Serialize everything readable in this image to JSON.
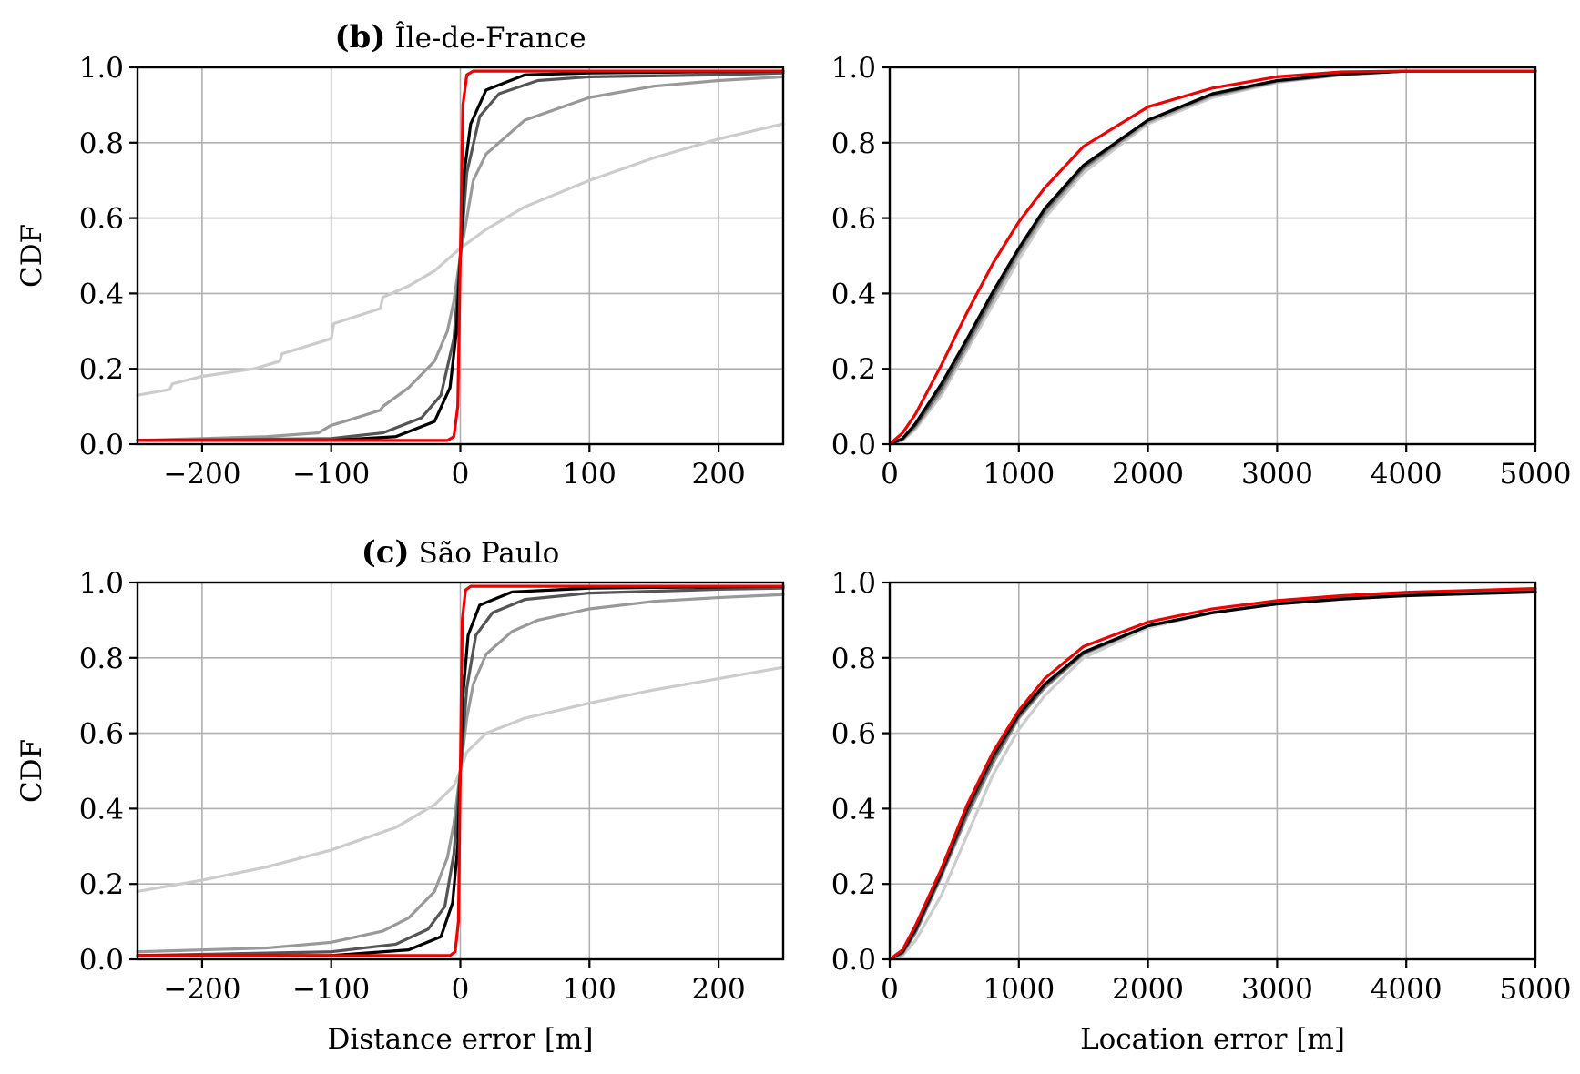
{
  "chart_data": [
    {
      "id": "b-distance",
      "type": "line",
      "panel_tag": "(b)",
      "panel_name": "Île-de-France",
      "xlabel": "",
      "ylabel": "CDF",
      "xlim": [
        -250,
        250
      ],
      "ylim": [
        0,
        1
      ],
      "xticks": [
        -200,
        -100,
        0,
        100,
        200
      ],
      "xtick_labels": [
        "−200",
        "−100",
        "0",
        "100",
        "200"
      ],
      "yticks": [
        0,
        0.2,
        0.4,
        0.6,
        0.8,
        1.0
      ],
      "ytick_labels": [
        "0.0",
        "0.2",
        "0.4",
        "0.6",
        "0.8",
        "1.0"
      ],
      "grid": true,
      "series": [
        {
          "color": "#cccccc",
          "x": [
            -250,
            -225,
            -223,
            -200,
            -160,
            -140,
            -138,
            -100,
            -98,
            -62,
            -60,
            -40,
            -20,
            0,
            20,
            50,
            100,
            150,
            200,
            250
          ],
          "y": [
            0.13,
            0.145,
            0.16,
            0.18,
            0.2,
            0.22,
            0.24,
            0.28,
            0.32,
            0.36,
            0.39,
            0.42,
            0.46,
            0.52,
            0.57,
            0.63,
            0.7,
            0.76,
            0.81,
            0.85
          ]
        },
        {
          "color": "#999999",
          "x": [
            -250,
            -200,
            -150,
            -110,
            -100,
            -90,
            -62,
            -60,
            -40,
            -20,
            -10,
            -5,
            0,
            5,
            10,
            20,
            50,
            100,
            150,
            200,
            250
          ],
          "y": [
            0.01,
            0.015,
            0.02,
            0.03,
            0.05,
            0.06,
            0.09,
            0.1,
            0.15,
            0.22,
            0.3,
            0.38,
            0.5,
            0.6,
            0.7,
            0.77,
            0.86,
            0.92,
            0.95,
            0.965,
            0.975
          ]
        },
        {
          "color": "#555555",
          "x": [
            -250,
            -100,
            -60,
            -30,
            -15,
            -5,
            0,
            5,
            15,
            30,
            60,
            100,
            200,
            250
          ],
          "y": [
            0.01,
            0.015,
            0.03,
            0.07,
            0.13,
            0.28,
            0.5,
            0.72,
            0.87,
            0.93,
            0.965,
            0.975,
            0.98,
            0.985
          ]
        },
        {
          "color": "#000000",
          "x": [
            -250,
            -100,
            -50,
            -20,
            -8,
            -3,
            0,
            3,
            8,
            20,
            50,
            100,
            250
          ],
          "y": [
            0.01,
            0.01,
            0.02,
            0.06,
            0.15,
            0.3,
            0.5,
            0.72,
            0.85,
            0.94,
            0.98,
            0.985,
            0.99
          ]
        },
        {
          "color": "#ee0000",
          "x": [
            -250,
            -10,
            -5,
            -2,
            0,
            2,
            5,
            10,
            250
          ],
          "y": [
            0.01,
            0.01,
            0.02,
            0.1,
            0.5,
            0.9,
            0.98,
            0.99,
            0.99
          ]
        }
      ]
    },
    {
      "id": "b-location",
      "type": "line",
      "panel_tag": "",
      "panel_name": "",
      "xlabel": "",
      "ylabel": "",
      "xlim": [
        0,
        5000
      ],
      "ylim": [
        0,
        1
      ],
      "xticks": [
        0,
        1000,
        2000,
        3000,
        4000,
        5000
      ],
      "xtick_labels": [
        "0",
        "1000",
        "2000",
        "3000",
        "4000",
        "5000"
      ],
      "yticks": [
        0,
        0.2,
        0.4,
        0.6,
        0.8,
        1.0
      ],
      "ytick_labels": [
        "0.0",
        "0.2",
        "0.4",
        "0.6",
        "0.8",
        "1.0"
      ],
      "grid": true,
      "series": [
        {
          "color": "#cccccc",
          "x": [
            0,
            100,
            200,
            400,
            600,
            800,
            1000,
            1200,
            1500,
            2000,
            2500,
            3000,
            3500,
            4000,
            4500,
            5000
          ],
          "y": [
            0,
            0.01,
            0.04,
            0.13,
            0.25,
            0.37,
            0.49,
            0.6,
            0.72,
            0.85,
            0.92,
            0.96,
            0.98,
            0.99,
            0.99,
            0.99
          ]
        },
        {
          "color": "#999999",
          "x": [
            0,
            100,
            200,
            400,
            600,
            800,
            1000,
            1200,
            1500,
            2000,
            2500,
            3000,
            3500,
            4000,
            4500,
            5000
          ],
          "y": [
            0,
            0.012,
            0.045,
            0.14,
            0.26,
            0.385,
            0.505,
            0.61,
            0.73,
            0.855,
            0.925,
            0.962,
            0.98,
            0.99,
            0.99,
            0.99
          ]
        },
        {
          "color": "#555555",
          "x": [
            0,
            100,
            200,
            400,
            600,
            800,
            1000,
            1200,
            1500,
            2000,
            2500,
            3000,
            3500,
            4000,
            4500,
            5000
          ],
          "y": [
            0,
            0.014,
            0.05,
            0.15,
            0.27,
            0.395,
            0.515,
            0.62,
            0.735,
            0.86,
            0.928,
            0.964,
            0.981,
            0.99,
            0.99,
            0.99
          ]
        },
        {
          "color": "#000000",
          "x": [
            0,
            100,
            200,
            400,
            600,
            800,
            1000,
            1200,
            1500,
            2000,
            2500,
            3000,
            3500,
            4000,
            4500,
            5000
          ],
          "y": [
            0,
            0.015,
            0.055,
            0.16,
            0.28,
            0.405,
            0.52,
            0.625,
            0.74,
            0.86,
            0.93,
            0.965,
            0.982,
            0.99,
            0.99,
            0.99
          ]
        },
        {
          "color": "#ee0000",
          "x": [
            0,
            100,
            200,
            400,
            600,
            800,
            1000,
            1200,
            1500,
            2000,
            2500,
            3000,
            3500,
            4000,
            4500,
            5000
          ],
          "y": [
            0,
            0.03,
            0.08,
            0.21,
            0.35,
            0.48,
            0.59,
            0.68,
            0.79,
            0.895,
            0.945,
            0.975,
            0.988,
            0.99,
            0.99,
            0.99
          ]
        }
      ]
    },
    {
      "id": "c-distance",
      "type": "line",
      "panel_tag": "(c)",
      "panel_name": "São Paulo",
      "xlabel": "Distance error [m]",
      "ylabel": "CDF",
      "xlim": [
        -250,
        250
      ],
      "ylim": [
        0,
        1
      ],
      "xticks": [
        -200,
        -100,
        0,
        100,
        200
      ],
      "xtick_labels": [
        "−200",
        "−100",
        "0",
        "100",
        "200"
      ],
      "yticks": [
        0,
        0.2,
        0.4,
        0.6,
        0.8,
        1.0
      ],
      "ytick_labels": [
        "0.0",
        "0.2",
        "0.4",
        "0.6",
        "0.8",
        "1.0"
      ],
      "grid": true,
      "series": [
        {
          "color": "#cccccc",
          "x": [
            -250,
            -200,
            -150,
            -100,
            -50,
            -20,
            -5,
            0,
            5,
            20,
            50,
            100,
            150,
            200,
            250
          ],
          "y": [
            0.18,
            0.21,
            0.245,
            0.29,
            0.35,
            0.41,
            0.46,
            0.5,
            0.55,
            0.6,
            0.64,
            0.68,
            0.715,
            0.745,
            0.775
          ]
        },
        {
          "color": "#999999",
          "x": [
            -250,
            -150,
            -100,
            -60,
            -40,
            -20,
            -10,
            -5,
            0,
            5,
            10,
            20,
            40,
            60,
            100,
            150,
            200,
            250
          ],
          "y": [
            0.02,
            0.03,
            0.045,
            0.075,
            0.11,
            0.18,
            0.27,
            0.36,
            0.5,
            0.64,
            0.73,
            0.81,
            0.87,
            0.9,
            0.93,
            0.95,
            0.96,
            0.968
          ]
        },
        {
          "color": "#555555",
          "x": [
            -250,
            -100,
            -50,
            -25,
            -12,
            -5,
            0,
            5,
            12,
            25,
            50,
            100,
            200,
            250
          ],
          "y": [
            0.01,
            0.02,
            0.04,
            0.08,
            0.14,
            0.28,
            0.5,
            0.72,
            0.86,
            0.92,
            0.955,
            0.972,
            0.982,
            0.985
          ]
        },
        {
          "color": "#000000",
          "x": [
            -250,
            -100,
            -40,
            -15,
            -6,
            -2,
            0,
            2,
            6,
            15,
            40,
            100,
            250
          ],
          "y": [
            0.01,
            0.01,
            0.025,
            0.06,
            0.15,
            0.3,
            0.5,
            0.7,
            0.86,
            0.94,
            0.975,
            0.985,
            0.99
          ]
        },
        {
          "color": "#ee0000",
          "x": [
            -250,
            -8,
            -4,
            -1.5,
            0,
            1.5,
            4,
            8,
            250
          ],
          "y": [
            0.01,
            0.01,
            0.02,
            0.1,
            0.5,
            0.9,
            0.98,
            0.99,
            0.99
          ]
        }
      ]
    },
    {
      "id": "c-location",
      "type": "line",
      "panel_tag": "",
      "panel_name": "",
      "xlabel": "Location error [m]",
      "ylabel": "",
      "xlim": [
        0,
        5000
      ],
      "ylim": [
        0,
        1
      ],
      "xticks": [
        0,
        1000,
        2000,
        3000,
        4000,
        5000
      ],
      "xtick_labels": [
        "0",
        "1000",
        "2000",
        "3000",
        "4000",
        "5000"
      ],
      "yticks": [
        0,
        0.2,
        0.4,
        0.6,
        0.8,
        1.0
      ],
      "ytick_labels": [
        "0.0",
        "0.2",
        "0.4",
        "0.6",
        "0.8",
        "1.0"
      ],
      "grid": true,
      "series": [
        {
          "color": "#cccccc",
          "x": [
            0,
            100,
            200,
            400,
            600,
            800,
            1000,
            1200,
            1500,
            2000,
            2500,
            3000,
            3500,
            4000,
            4500,
            5000
          ],
          "y": [
            0,
            0.01,
            0.05,
            0.17,
            0.33,
            0.49,
            0.61,
            0.7,
            0.8,
            0.88,
            0.92,
            0.945,
            0.96,
            0.97,
            0.975,
            0.98
          ]
        },
        {
          "color": "#999999",
          "x": [
            0,
            100,
            200,
            400,
            600,
            800,
            1000,
            1200,
            1500,
            2000,
            2500,
            3000,
            3500,
            4000,
            4500,
            5000
          ],
          "y": [
            0,
            0.015,
            0.07,
            0.22,
            0.38,
            0.52,
            0.64,
            0.72,
            0.81,
            0.885,
            0.92,
            0.945,
            0.958,
            0.967,
            0.972,
            0.977
          ]
        },
        {
          "color": "#555555",
          "x": [
            0,
            100,
            200,
            400,
            600,
            800,
            1000,
            1200,
            1500,
            2000,
            2500,
            3000,
            3500,
            4000,
            4500,
            5000
          ],
          "y": [
            0,
            0.018,
            0.075,
            0.225,
            0.39,
            0.53,
            0.645,
            0.725,
            0.812,
            0.885,
            0.92,
            0.944,
            0.957,
            0.966,
            0.971,
            0.976
          ]
        },
        {
          "color": "#000000",
          "x": [
            0,
            100,
            200,
            400,
            600,
            800,
            1000,
            1200,
            1500,
            2000,
            2500,
            3000,
            3500,
            4000,
            4500,
            5000
          ],
          "y": [
            0,
            0.02,
            0.08,
            0.23,
            0.4,
            0.54,
            0.65,
            0.73,
            0.815,
            0.885,
            0.92,
            0.943,
            0.956,
            0.965,
            0.97,
            0.975
          ]
        },
        {
          "color": "#ee0000",
          "x": [
            0,
            100,
            200,
            400,
            600,
            800,
            1000,
            1200,
            1500,
            2000,
            2500,
            3000,
            3500,
            4000,
            4500,
            5000
          ],
          "y": [
            0,
            0.025,
            0.09,
            0.24,
            0.41,
            0.55,
            0.66,
            0.745,
            0.83,
            0.895,
            0.93,
            0.952,
            0.965,
            0.974,
            0.979,
            0.984
          ]
        }
      ]
    }
  ]
}
